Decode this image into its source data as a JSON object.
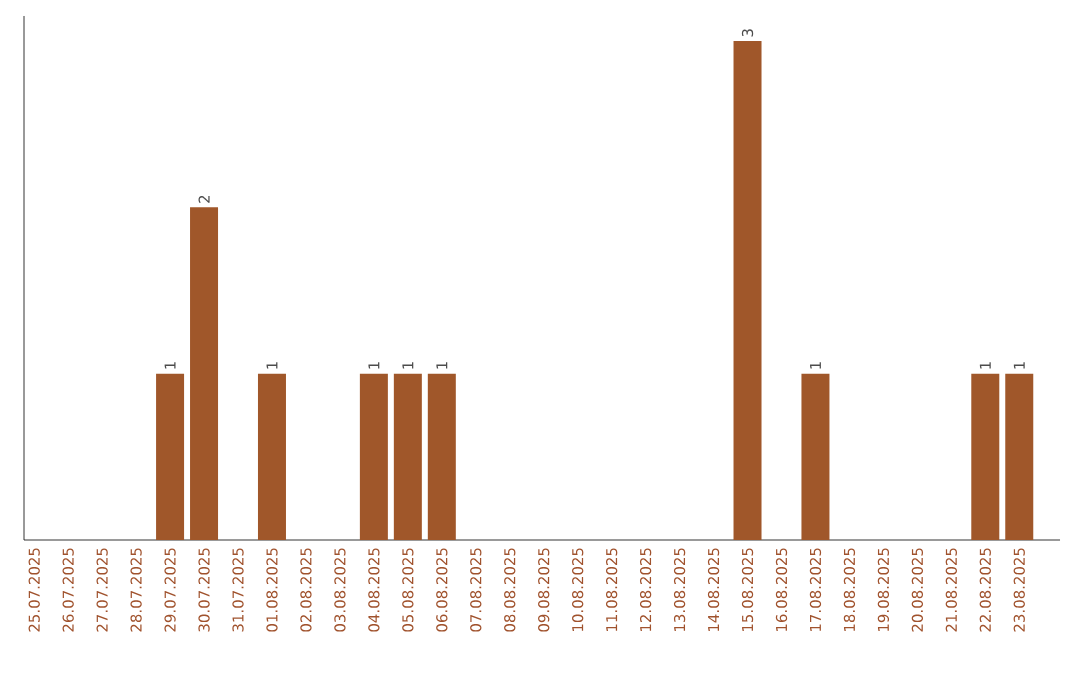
{
  "chart_data": {
    "type": "bar",
    "color": "#a0572a",
    "categories": [
      "25.07.2025",
      "26.07.2025",
      "27.07.2025",
      "28.07.2025",
      "29.07.2025",
      "30.07.2025",
      "31.07.2025",
      "01.08.2025",
      "02.08.2025",
      "03.08.2025",
      "04.08.2025",
      "05.08.2025",
      "06.08.2025",
      "07.08.2025",
      "08.08.2025",
      "09.08.2025",
      "10.08.2025",
      "11.08.2025",
      "12.08.2025",
      "13.08.2025",
      "14.08.2025",
      "15.08.2025",
      "16.08.2025",
      "17.08.2025",
      "18.08.2025",
      "19.08.2025",
      "20.08.2025",
      "21.08.2025",
      "22.08.2025",
      "23.08.2025"
    ],
    "values": [
      0,
      0,
      0,
      0,
      1,
      2,
      0,
      1,
      0,
      0,
      1,
      1,
      1,
      0,
      0,
      0,
      0,
      0,
      0,
      0,
      0,
      3,
      0,
      1,
      0,
      0,
      0,
      0,
      1,
      1
    ],
    "value_labels": [
      null,
      null,
      null,
      null,
      "1",
      "2",
      null,
      "1",
      null,
      null,
      "1",
      "1",
      "1",
      null,
      null,
      null,
      null,
      null,
      null,
      null,
      null,
      "3",
      null,
      "1",
      null,
      null,
      null,
      null,
      "1",
      "1"
    ],
    "ylim": [
      0,
      3.15
    ]
  }
}
